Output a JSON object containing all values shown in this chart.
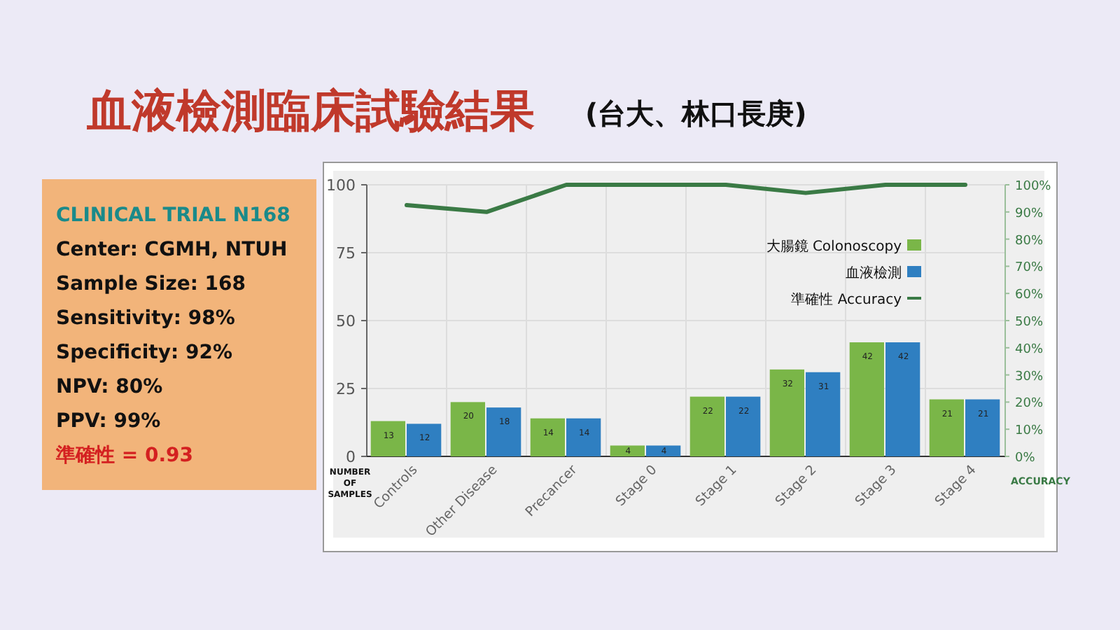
{
  "chart_data": {
    "type": "bar",
    "title": "血液檢測臨床試驗結果",
    "subtitle": "(台大、林口長庚)",
    "categories": [
      "Controls",
      "Other Disease",
      "Precancer",
      "Stage 0",
      "Stage 1",
      "Stage 2",
      "Stage 3",
      "Stage 4"
    ],
    "series": [
      {
        "name": "大腸鏡 Colonoscopy",
        "color": "#7ab648",
        "values": [
          13,
          20,
          14,
          4,
          22,
          32,
          42,
          21
        ],
        "value_labels": [
          "13",
          "20",
          "14",
          "4",
          "22",
          "32",
          "42",
          "21"
        ]
      },
      {
        "name": "血液檢測",
        "color": "#2f7fc1",
        "values": [
          12,
          18,
          14,
          4,
          22,
          31,
          42,
          21
        ],
        "value_labels": [
          "12",
          "18",
          "14",
          "4",
          "22",
          "31",
          "42",
          "21"
        ]
      },
      {
        "name": "準確性 Accuracy",
        "type": "line",
        "axis": "y2",
        "color": "#3a7a45",
        "values": [
          0.925,
          0.9,
          1,
          1,
          1,
          0.97,
          1,
          1
        ]
      }
    ],
    "ylabel": "NUMBER OF SAMPLES",
    "y2label": "ACCURACY",
    "ylim": [
      0,
      100
    ],
    "yticks": [
      0,
      25,
      50,
      75,
      100
    ],
    "y2lim": [
      0,
      1
    ],
    "y2ticks": [
      {
        "value": 0,
        "label": "0%"
      },
      {
        "value": 0.1,
        "label": "10%"
      },
      {
        "value": 0.2,
        "label": "20%"
      },
      {
        "value": 0.3,
        "label": "30%"
      },
      {
        "value": 0.4,
        "label": "40%"
      },
      {
        "value": 0.5,
        "label": "50%"
      },
      {
        "value": 0.6,
        "label": "60%"
      },
      {
        "value": 0.7,
        "label": "70%"
      },
      {
        "value": 0.8,
        "label": "80%"
      },
      {
        "value": 0.9,
        "label": "90%"
      },
      {
        "value": 1,
        "label": "100%"
      }
    ],
    "grid": true,
    "legend": "right",
    "annotations": [
      "CLINICAL TRIAL N168",
      "Center: CGMH, NTUH",
      "Sample Size: 168",
      "Sensitivity: 98%",
      "Specificity: 92%",
      "NPV: 80%",
      "PPV: 99%",
      "準確性 = 0.93"
    ]
  }
}
